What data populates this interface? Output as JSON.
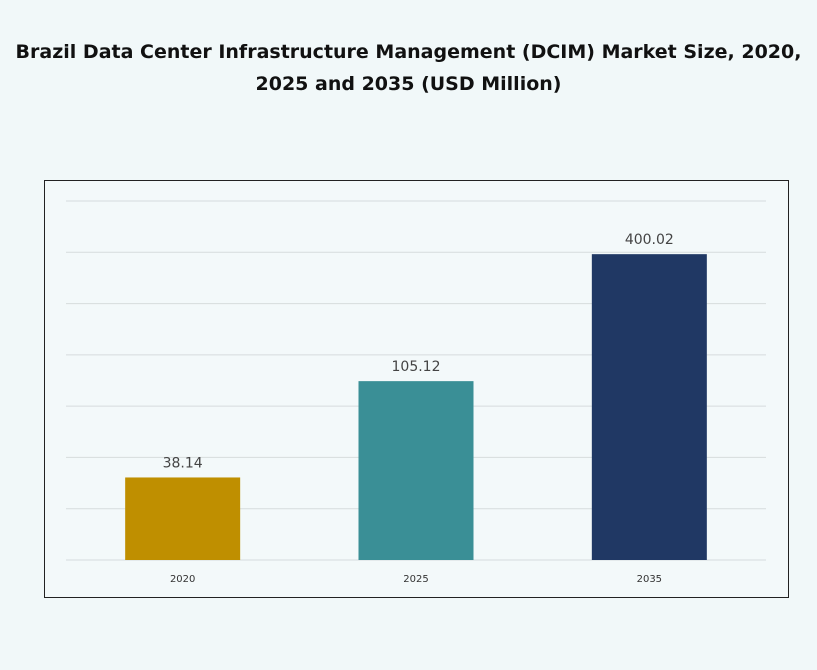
{
  "chart_data": {
    "type": "bar",
    "title": "Brazil Data Center Infrastructure Management (DCIM) Market Size, 2020, 2025 and 2035 (USD Million)",
    "categories": [
      "2020",
      "2025",
      "2035"
    ],
    "values": [
      38.14,
      105.12,
      400.02
    ],
    "colors": [
      "#BF8F00",
      "#3A8F96",
      "#203864"
    ],
    "xlabel": "",
    "ylabel": "",
    "yscale": "log",
    "ylim": [
      16,
      700
    ],
    "grid": true,
    "legend": "none"
  }
}
